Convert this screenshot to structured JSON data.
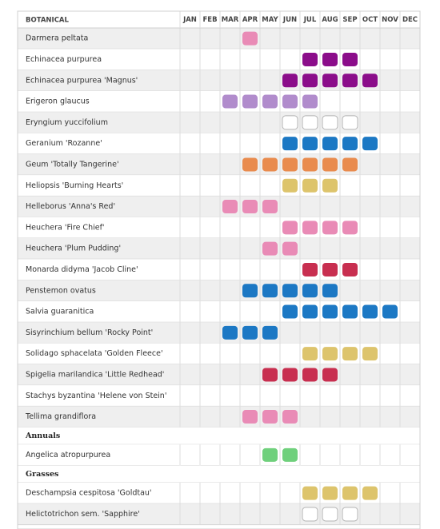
{
  "table": {
    "header": {
      "botanical": "BOTANICAL",
      "months": [
        "JAN",
        "FEB",
        "MAR",
        "APR",
        "MAY",
        "JUN",
        "JUL",
        "AUG",
        "SEP",
        "OCT",
        "NOV",
        "DEC"
      ]
    },
    "rows": [
      {
        "name": "Darmera peltata",
        "color": "#e98bb6",
        "months": [
          3
        ]
      },
      {
        "name": "Echinacea purpurea",
        "color": "#8b0d8a",
        "months": [
          6,
          7,
          8
        ]
      },
      {
        "name": "Echinacea purpurea 'Magnus'",
        "color": "#8b0d8a",
        "months": [
          5,
          6,
          7,
          8,
          9
        ]
      },
      {
        "name": "Erigeron glaucus",
        "color": "#b18ccc",
        "months": [
          2,
          3,
          4,
          5,
          6
        ]
      },
      {
        "name": "Eryngium yuccifolium",
        "color": "#ffffff",
        "outline": true,
        "months": [
          5,
          6,
          7,
          8
        ]
      },
      {
        "name": "Geranium 'Rozanne'",
        "color": "#1c78c4",
        "months": [
          5,
          6,
          7,
          8,
          9
        ]
      },
      {
        "name": "Geum 'Totally Tangerine'",
        "color": "#e98b4e",
        "months": [
          3,
          4,
          5,
          6,
          7,
          8
        ]
      },
      {
        "name": "Heliopsis 'Burning Hearts'",
        "color": "#ddc46c",
        "months": [
          5,
          6,
          7
        ]
      },
      {
        "name": "Helleborus 'Anna's Red'",
        "color": "#e98bb6",
        "months": [
          2,
          3,
          4
        ]
      },
      {
        "name": "Heuchera 'Fire Chief'",
        "color": "#e98bb6",
        "months": [
          5,
          6,
          7,
          8
        ]
      },
      {
        "name": "Heuchera 'Plum Pudding'",
        "color": "#e98bb6",
        "months": [
          4,
          5
        ]
      },
      {
        "name": "Monarda didyma 'Jacob Cline'",
        "color": "#c82f50",
        "months": [
          6,
          7,
          8
        ]
      },
      {
        "name": "Penstemon ovatus",
        "color": "#1c78c4",
        "months": [
          3,
          4,
          5,
          6,
          7
        ]
      },
      {
        "name": "Salvia guaranitica",
        "color": "#1c78c4",
        "months": [
          5,
          6,
          7,
          8,
          9,
          10
        ]
      },
      {
        "name": "Sisyrinchium bellum 'Rocky Point'",
        "color": "#1c78c4",
        "months": [
          2,
          3,
          4
        ]
      },
      {
        "name": "Solidago sphacelata 'Golden Fleece'",
        "color": "#ddc46c",
        "months": [
          6,
          7,
          8,
          9
        ]
      },
      {
        "name": "Spigelia marilandica 'Little Redhead'",
        "color": "#c82f50",
        "months": [
          4,
          5,
          6,
          7
        ]
      },
      {
        "name": "Stachys byzantina 'Helene von Stein'",
        "color": "#ffffff",
        "months": []
      },
      {
        "name": "Tellima grandiflora",
        "color": "#e98bb6",
        "months": [
          3,
          4,
          5
        ]
      },
      {
        "section": "Annuals"
      },
      {
        "name": "Angelica atropurpurea",
        "color": "#6fd07c",
        "months": [
          4,
          5
        ]
      },
      {
        "section": "Grasses"
      },
      {
        "name": "Deschampsia cespitosa 'Goldtau'",
        "color": "#ddc46c",
        "months": [
          6,
          7,
          8,
          9
        ]
      },
      {
        "name": "Helictotrichon sem. 'Sapphire'",
        "color": "#ffffff",
        "outline": true,
        "months": [
          6,
          7,
          8
        ]
      }
    ]
  }
}
